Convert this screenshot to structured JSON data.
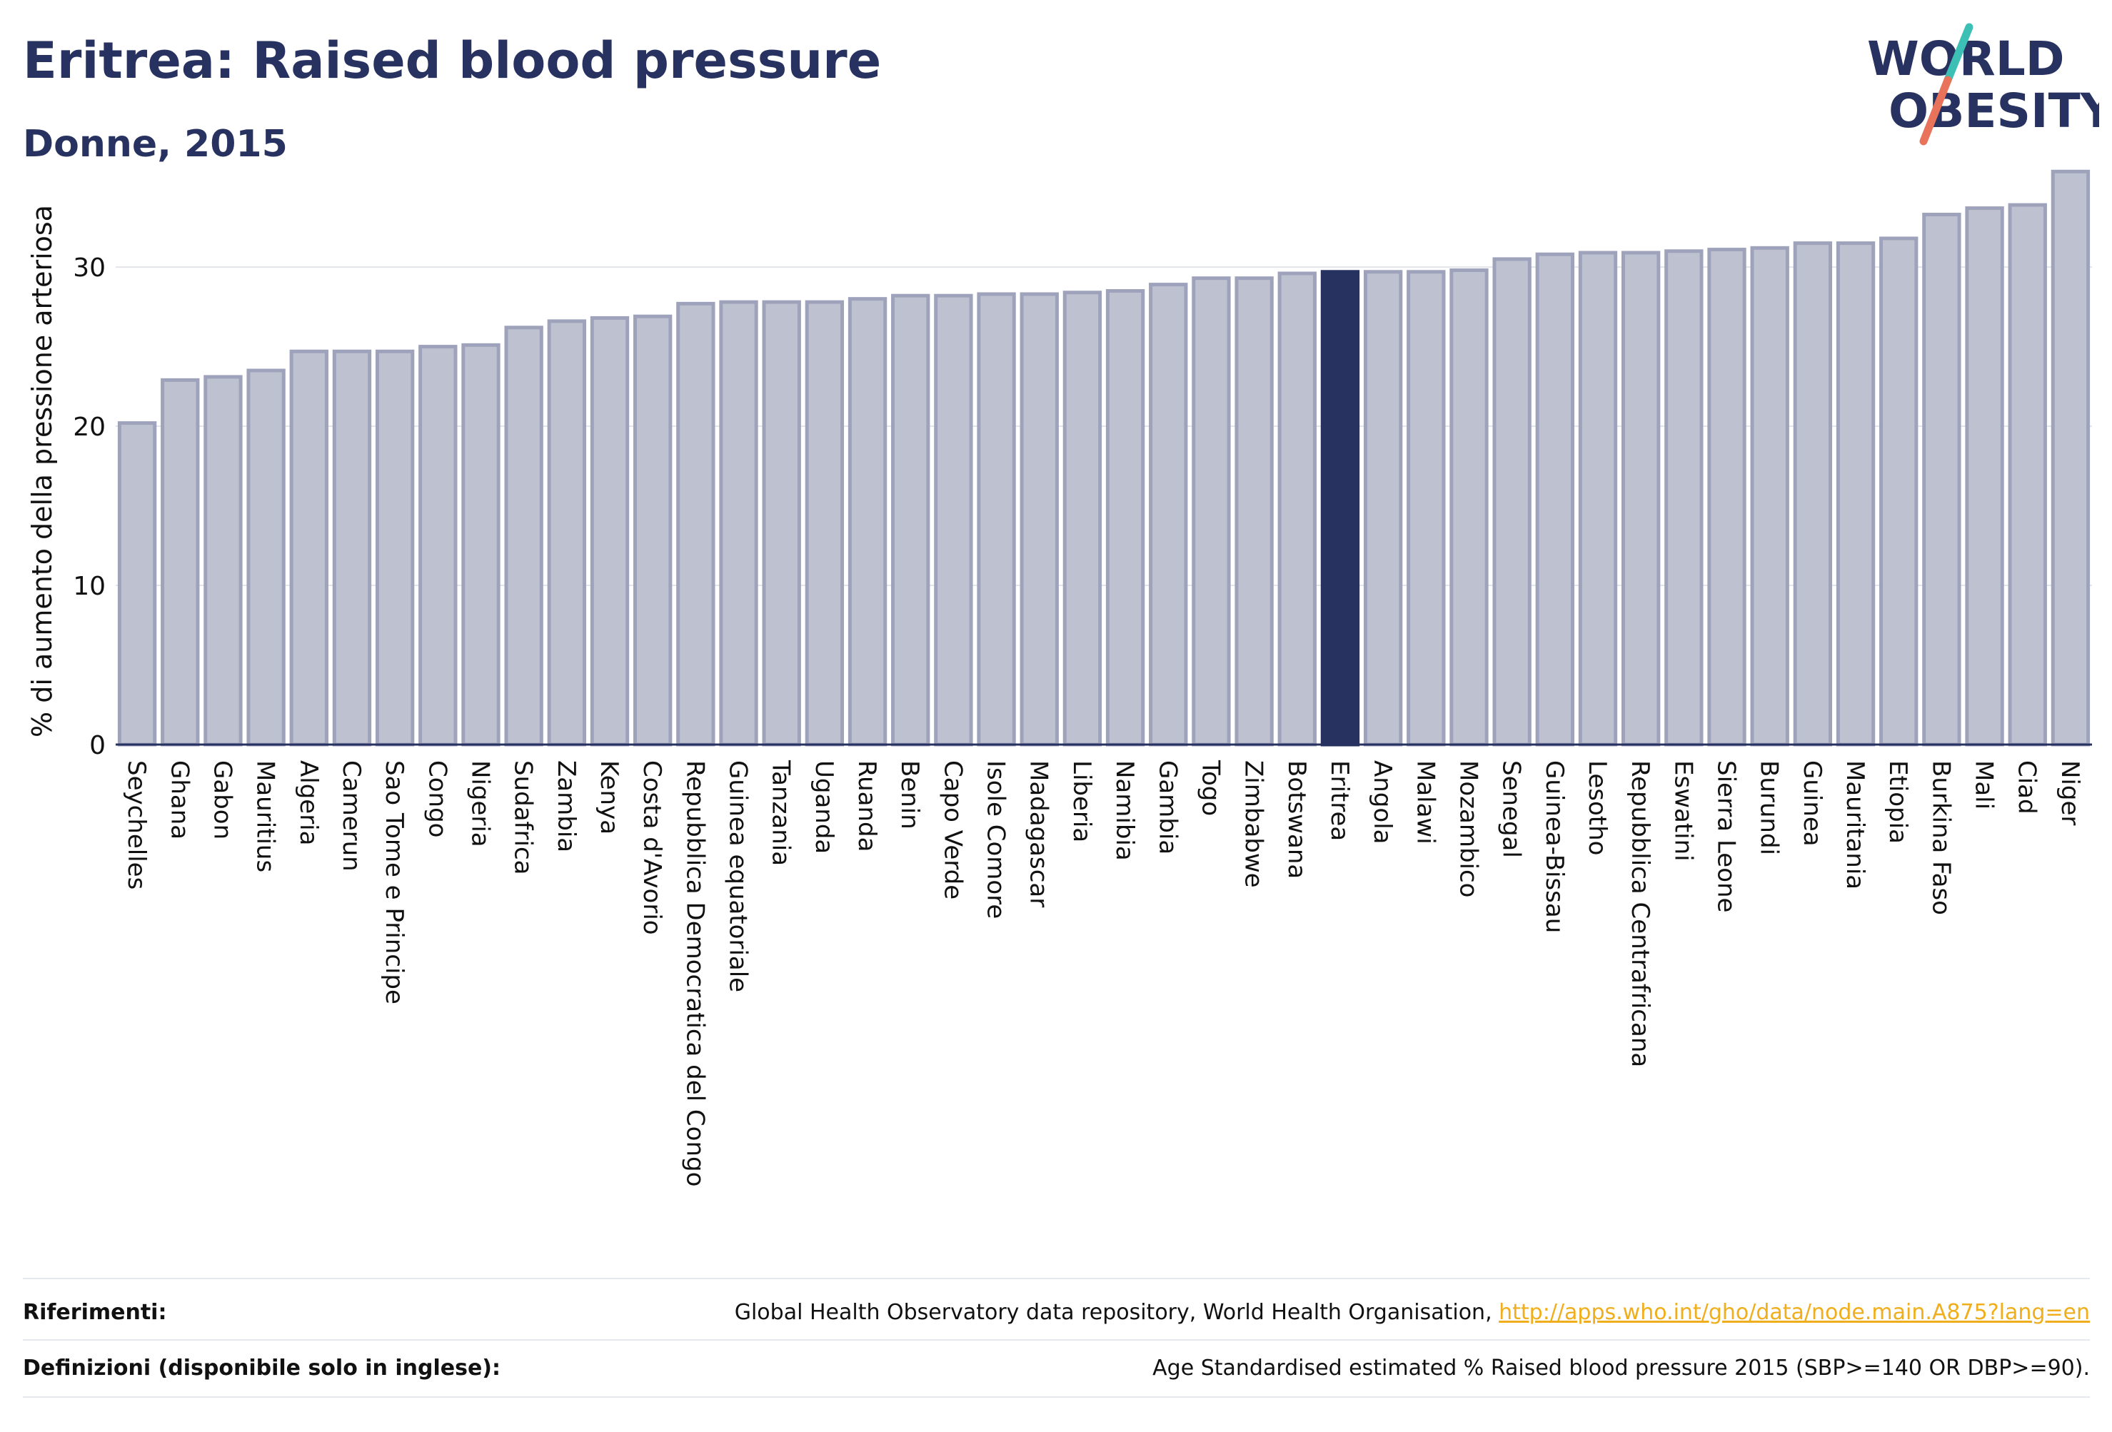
{
  "header": {
    "title": "Eritrea: Raised blood pressure",
    "subtitle": "Donne, 2015"
  },
  "logo": {
    "line1": "WORLD",
    "line2": "OBESITY",
    "colors": {
      "text": "#283260",
      "slash_top": "#3cbfb4",
      "slash_bottom": "#e8735a"
    }
  },
  "chart_data": {
    "type": "bar",
    "ylabel": "% di aumento della pressione arteriosa",
    "ylim": [
      0,
      37
    ],
    "yticks": [
      0,
      10,
      20,
      30
    ],
    "grid": true,
    "highlight": "Eritrea",
    "colors": {
      "bar": "#bec2d0",
      "bar_border": "#9ea3bb",
      "highlight": "#283260",
      "axis": "#283260",
      "grid": "#e3e5ec"
    },
    "categories": [
      "Seychelles",
      "Ghana",
      "Gabon",
      "Mauritius",
      "Algeria",
      "Camerun",
      "Sao Tome e Principe",
      "Congo",
      "Nigeria",
      "Sudafrica",
      "Zambia",
      "Kenya",
      "Costa d'Avorio",
      "Repubblica Democratica del Congo",
      "Guinea equatoriale",
      "Tanzania",
      "Uganda",
      "Ruanda",
      "Benin",
      "Capo Verde",
      "Isole Comore",
      "Madagascar",
      "Liberia",
      "Namibia",
      "Gambia",
      "Togo",
      "Zimbabwe",
      "Botswana",
      "Eritrea",
      "Angola",
      "Malawi",
      "Mozambico",
      "Senegal",
      "Guinea-Bissau",
      "Lesotho",
      "Repubblica Centrafricana",
      "Eswatini",
      "Sierra Leone",
      "Burundi",
      "Guinea",
      "Mauritania",
      "Etiopia",
      "Burkina Faso",
      "Mali",
      "Ciad",
      "Niger"
    ],
    "values": [
      20.2,
      22.9,
      23.1,
      23.5,
      24.7,
      24.7,
      24.7,
      25.0,
      25.1,
      26.2,
      26.6,
      26.8,
      26.9,
      27.7,
      27.8,
      27.8,
      27.8,
      28.0,
      28.2,
      28.2,
      28.3,
      28.3,
      28.4,
      28.5,
      28.9,
      29.3,
      29.3,
      29.6,
      29.7,
      29.7,
      29.7,
      29.8,
      30.5,
      30.8,
      30.9,
      30.9,
      31.0,
      31.1,
      31.2,
      31.5,
      31.5,
      31.8,
      33.3,
      33.7,
      33.9,
      36.0
    ]
  },
  "footer": {
    "references_label": "Riferimenti:",
    "references_text": "Global Health Observatory data repository, World Health Organisation, ",
    "references_link": "http://apps.who.int/gho/data/node.main.A875?lang=en",
    "definitions_label": "Definizioni (disponibile solo in inglese):",
    "definitions_text": "Age Standardised estimated % Raised blood pressure 2015 (SBP>=140 OR DBP>=90)."
  }
}
